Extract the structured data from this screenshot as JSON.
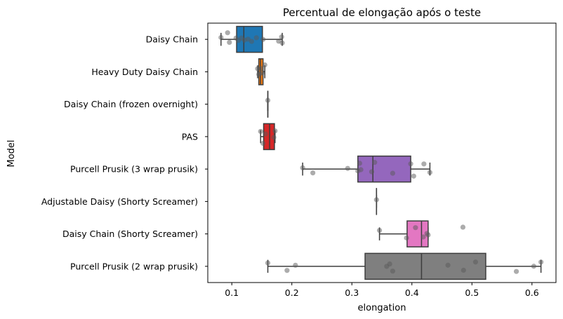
{
  "chart_data": {
    "type": "boxplot",
    "orientation": "horizontal",
    "title": "Percentual de elongação após o teste",
    "xlabel": "elongation",
    "ylabel": "Model",
    "xlim": [
      0.06,
      0.64
    ],
    "xticks": [
      0.1,
      0.2,
      0.3,
      0.4,
      0.5,
      0.6
    ],
    "grid": false,
    "legend": "none",
    "categories": [
      "Daisy Chain",
      "Heavy Duty Daisy Chain",
      "Daisy Chain (frozen overnight)",
      "PAS",
      "Purcell Prusik (3 wrap prusik)",
      "Adjustable Daisy (Shorty Screamer)",
      "Daisy Chain (Shorty Screamer)",
      "Purcell Prusik (2 wrap prusik)"
    ],
    "boxes": [
      {
        "color": "#1f77b4",
        "whislo": 0.082,
        "q1": 0.108,
        "med": 0.12,
        "q3": 0.151,
        "whishi": 0.184,
        "points": [
          0.082,
          0.093,
          0.096,
          0.107,
          0.111,
          0.116,
          0.121,
          0.127,
          0.133,
          0.141,
          0.152,
          0.178,
          0.183,
          0.184
        ]
      },
      {
        "color": "#ff7f0e",
        "whislo": 0.143,
        "q1": 0.145,
        "med": 0.148,
        "q3": 0.152,
        "whishi": 0.155,
        "points": [
          0.143,
          0.145,
          0.147,
          0.149,
          0.151,
          0.155
        ]
      },
      {
        "color": "#2ca02c",
        "whislo": 0.16,
        "q1": 0.16,
        "med": 0.16,
        "q3": 0.16,
        "whishi": 0.16,
        "points": [
          0.16
        ]
      },
      {
        "color": "#d62728",
        "whislo": 0.148,
        "q1": 0.153,
        "med": 0.163,
        "q3": 0.171,
        "whishi": 0.172,
        "points": [
          0.148,
          0.152,
          0.156,
          0.17,
          0.172
        ]
      },
      {
        "color": "#9467bd",
        "whislo": 0.218,
        "q1": 0.31,
        "med": 0.335,
        "q3": 0.398,
        "whishi": 0.43,
        "points": [
          0.218,
          0.235,
          0.293,
          0.31,
          0.313,
          0.315,
          0.333,
          0.338,
          0.368,
          0.398,
          0.403,
          0.42,
          0.43
        ]
      },
      {
        "color": "#8c564b",
        "whislo": 0.341,
        "q1": 0.341,
        "med": 0.341,
        "q3": 0.341,
        "whishi": 0.341,
        "points": [
          0.341
        ]
      },
      {
        "color": "#e377c2",
        "whislo": 0.346,
        "q1": 0.392,
        "med": 0.416,
        "q3": 0.427,
        "whishi": 0.427,
        "points": [
          0.346,
          0.391,
          0.406,
          0.419,
          0.425,
          0.427,
          0.485
        ]
      },
      {
        "color": "#7f7f7f",
        "whislo": 0.16,
        "q1": 0.322,
        "med": 0.416,
        "q3": 0.523,
        "whishi": 0.615,
        "points": [
          0.16,
          0.192,
          0.206,
          0.358,
          0.363,
          0.368,
          0.46,
          0.486,
          0.506,
          0.574,
          0.603,
          0.615
        ]
      }
    ]
  }
}
